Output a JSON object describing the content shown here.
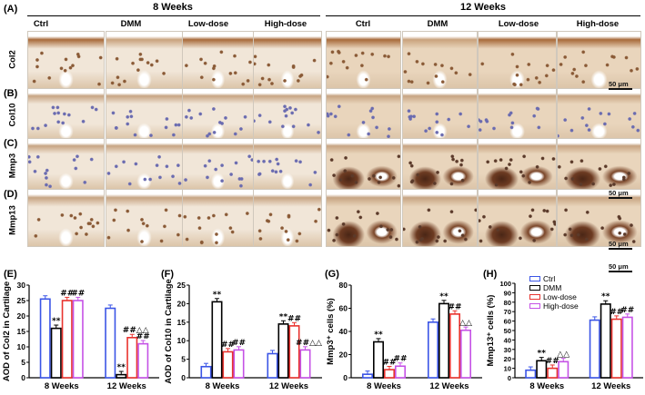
{
  "panels": [
    "(A)",
    "(B)",
    "(C)",
    "(D)",
    "(E)",
    "(F)",
    "(G)",
    "(H)"
  ],
  "weeks": [
    "8 Weeks",
    "12 Weeks"
  ],
  "groups": [
    "Ctrl",
    "DMM",
    "Low-dose",
    "High-dose"
  ],
  "stains": [
    "Col2",
    "Col10",
    "Mmp3",
    "Mmp13"
  ],
  "scale_bar": "50 μm",
  "colors": {
    "Ctrl": "#3b55e6",
    "DMM": "#000000",
    "Low-dose": "#e8332e",
    "High-dose": "#c552e6"
  },
  "chart_data": [
    {
      "type": "bar",
      "panel": "(E)",
      "ylabel": "AOD of Col2 in Cartilage",
      "categories": [
        "8 Weeks",
        "12 Weeks"
      ],
      "ylim": [
        0,
        30
      ],
      "yticks": [
        "0",
        "5",
        "10",
        "15",
        "20",
        "25",
        "30"
      ],
      "series": [
        {
          "name": "Ctrl",
          "values": [
            25.5,
            22.5
          ]
        },
        {
          "name": "DMM",
          "values": [
            16,
            1
          ]
        },
        {
          "name": "Low-dose",
          "values": [
            25,
            13
          ]
        },
        {
          "name": "High-dose",
          "values": [
            25,
            11
          ]
        }
      ],
      "annotations": [
        [
          "",
          "**",
          "##",
          "##"
        ],
        [
          "",
          "**",
          "##△△",
          "##"
        ]
      ]
    },
    {
      "type": "bar",
      "panel": "(F)",
      "ylabel": "AOD of Col10 in Cartilage",
      "categories": [
        "8 Weeks",
        "12 Weeks"
      ],
      "ylim": [
        0,
        25
      ],
      "yticks": [
        "0",
        "5",
        "10",
        "15",
        "20",
        "25"
      ],
      "series": [
        {
          "name": "Ctrl",
          "values": [
            3,
            6.5
          ]
        },
        {
          "name": "DMM",
          "values": [
            20.5,
            14.5
          ]
        },
        {
          "name": "Low-dose",
          "values": [
            7,
            14
          ]
        },
        {
          "name": "High-dose",
          "values": [
            7.5,
            7.5
          ]
        }
      ],
      "annotations": [
        [
          "",
          "**",
          "##",
          "##"
        ],
        [
          "",
          "**",
          "##",
          "##△△"
        ]
      ]
    },
    {
      "type": "bar",
      "panel": "(G)",
      "ylabel": "Mmp3⁺ cells (%)",
      "categories": [
        "8 Weeks",
        "12 Weeks"
      ],
      "ylim": [
        0,
        80
      ],
      "yticks": [
        "0",
        "20",
        "40",
        "60",
        "80"
      ],
      "series": [
        {
          "name": "Ctrl",
          "values": [
            3,
            48
          ]
        },
        {
          "name": "DMM",
          "values": [
            31,
            64
          ]
        },
        {
          "name": "Low-dose",
          "values": [
            7,
            55
          ]
        },
        {
          "name": "High-dose",
          "values": [
            10,
            41
          ]
        }
      ],
      "annotations": [
        [
          "",
          "**",
          "##",
          "##"
        ],
        [
          "",
          "**",
          "##",
          "△△"
        ]
      ]
    },
    {
      "type": "bar",
      "panel": "(H)",
      "ylabel": "Mmp13⁺ cells (%)",
      "categories": [
        "8 Weeks",
        "12 Weeks"
      ],
      "ylim": [
        0,
        100
      ],
      "yticks": [
        "0",
        "10",
        "20",
        "30",
        "40",
        "50",
        "60",
        "70",
        "80",
        "90",
        "100"
      ],
      "legend": [
        "Ctrl",
        "DMM",
        "Low-dose",
        "High-dose"
      ],
      "legend_position": "top-left",
      "series": [
        {
          "name": "Ctrl",
          "values": [
            8,
            61
          ]
        },
        {
          "name": "DMM",
          "values": [
            18,
            78
          ]
        },
        {
          "name": "Low-dose",
          "values": [
            10,
            62
          ]
        },
        {
          "name": "High-dose",
          "values": [
            17,
            64
          ]
        }
      ],
      "annotations": [
        [
          "",
          "**",
          "##",
          "△△"
        ],
        [
          "",
          "**",
          "##",
          "##"
        ]
      ]
    }
  ]
}
